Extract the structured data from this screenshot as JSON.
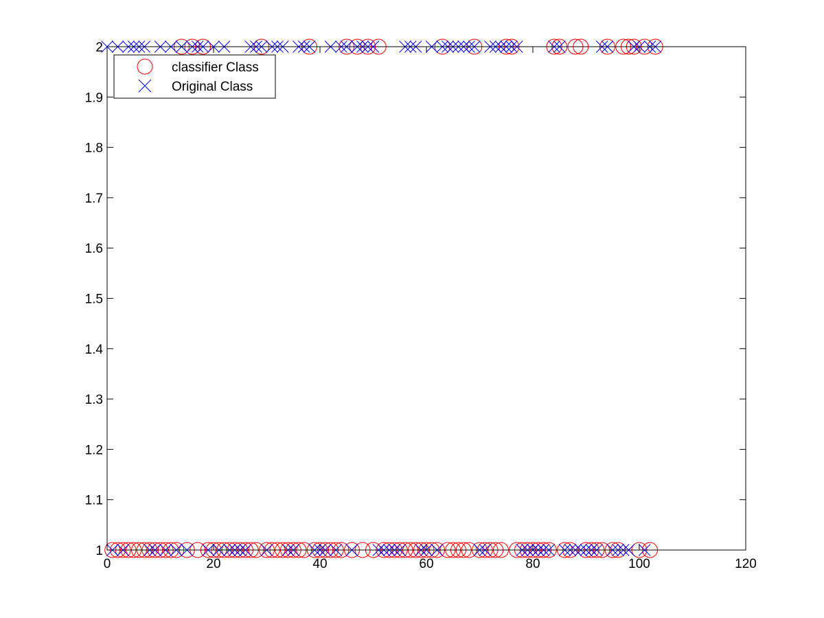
{
  "chart_data": {
    "type": "scatter",
    "title": "",
    "xlabel": "",
    "ylabel": "",
    "xlim": [
      0,
      120
    ],
    "ylim": [
      1,
      2
    ],
    "xticks": [
      "0",
      "20",
      "40",
      "60",
      "80",
      "100",
      "120"
    ],
    "yticks": [
      "1",
      "1.1",
      "1.2",
      "1.3",
      "1.4",
      "1.5",
      "1.6",
      "1.7",
      "1.8",
      "1.9",
      "2"
    ],
    "grid": false,
    "legend_position": "top-left",
    "series": [
      {
        "name": "classifier Class",
        "marker": "circle",
        "color": "#ff0000",
        "points": [
          {
            "x": 1,
            "y": 1
          },
          {
            "x": 2,
            "y": 1
          },
          {
            "x": 3,
            "y": 1
          },
          {
            "x": 4,
            "y": 1
          },
          {
            "x": 5,
            "y": 1
          },
          {
            "x": 6,
            "y": 1
          },
          {
            "x": 7,
            "y": 1
          },
          {
            "x": 8,
            "y": 1
          },
          {
            "x": 9,
            "y": 1
          },
          {
            "x": 10,
            "y": 1
          },
          {
            "x": 11,
            "y": 1
          },
          {
            "x": 12,
            "y": 1
          },
          {
            "x": 13,
            "y": 1
          },
          {
            "x": 14,
            "y": 2
          },
          {
            "x": 15,
            "y": 1
          },
          {
            "x": 16,
            "y": 2
          },
          {
            "x": 17,
            "y": 1
          },
          {
            "x": 18,
            "y": 2
          },
          {
            "x": 19,
            "y": 1
          },
          {
            "x": 20,
            "y": 1
          },
          {
            "x": 21,
            "y": 1
          },
          {
            "x": 22,
            "y": 1
          },
          {
            "x": 23,
            "y": 1
          },
          {
            "x": 24,
            "y": 1
          },
          {
            "x": 25,
            "y": 1
          },
          {
            "x": 26,
            "y": 1
          },
          {
            "x": 27,
            "y": 1
          },
          {
            "x": 28,
            "y": 1
          },
          {
            "x": 29,
            "y": 2
          },
          {
            "x": 30,
            "y": 1
          },
          {
            "x": 31,
            "y": 1
          },
          {
            "x": 32,
            "y": 1
          },
          {
            "x": 33,
            "y": 1
          },
          {
            "x": 34,
            "y": 1
          },
          {
            "x": 35,
            "y": 1
          },
          {
            "x": 36,
            "y": 1
          },
          {
            "x": 37,
            "y": 1
          },
          {
            "x": 38,
            "y": 2
          },
          {
            "x": 39,
            "y": 1
          },
          {
            "x": 40,
            "y": 1
          },
          {
            "x": 41,
            "y": 1
          },
          {
            "x": 42,
            "y": 1
          },
          {
            "x": 43,
            "y": 1
          },
          {
            "x": 44,
            "y": 1
          },
          {
            "x": 45,
            "y": 2
          },
          {
            "x": 46,
            "y": 1
          },
          {
            "x": 47,
            "y": 2
          },
          {
            "x": 48,
            "y": 1
          },
          {
            "x": 49,
            "y": 2
          },
          {
            "x": 50,
            "y": 1
          },
          {
            "x": 51,
            "y": 2
          },
          {
            "x": 52,
            "y": 1
          },
          {
            "x": 53,
            "y": 1
          },
          {
            "x": 54,
            "y": 1
          },
          {
            "x": 55,
            "y": 1
          },
          {
            "x": 56,
            "y": 1
          },
          {
            "x": 57,
            "y": 1
          },
          {
            "x": 58,
            "y": 1
          },
          {
            "x": 59,
            "y": 1
          },
          {
            "x": 60,
            "y": 1
          },
          {
            "x": 61,
            "y": 1
          },
          {
            "x": 62,
            "y": 1
          },
          {
            "x": 63,
            "y": 2
          },
          {
            "x": 64,
            "y": 1
          },
          {
            "x": 65,
            "y": 1
          },
          {
            "x": 66,
            "y": 1
          },
          {
            "x": 67,
            "y": 1
          },
          {
            "x": 68,
            "y": 1
          },
          {
            "x": 69,
            "y": 2
          },
          {
            "x": 70,
            "y": 1
          },
          {
            "x": 71,
            "y": 1
          },
          {
            "x": 72,
            "y": 1
          },
          {
            "x": 73,
            "y": 1
          },
          {
            "x": 74,
            "y": 1
          },
          {
            "x": 75,
            "y": 2
          },
          {
            "x": 76,
            "y": 2
          },
          {
            "x": 77,
            "y": 1
          },
          {
            "x": 78,
            "y": 1
          },
          {
            "x": 79,
            "y": 1
          },
          {
            "x": 80,
            "y": 1
          },
          {
            "x": 81,
            "y": 1
          },
          {
            "x": 82,
            "y": 1
          },
          {
            "x": 83,
            "y": 1
          },
          {
            "x": 84,
            "y": 2
          },
          {
            "x": 85,
            "y": 2
          },
          {
            "x": 86,
            "y": 1
          },
          {
            "x": 87,
            "y": 1
          },
          {
            "x": 88,
            "y": 2
          },
          {
            "x": 89,
            "y": 2
          },
          {
            "x": 90,
            "y": 1
          },
          {
            "x": 91,
            "y": 1
          },
          {
            "x": 92,
            "y": 1
          },
          {
            "x": 93,
            "y": 1
          },
          {
            "x": 94,
            "y": 2
          },
          {
            "x": 95,
            "y": 1
          },
          {
            "x": 96,
            "y": 1
          },
          {
            "x": 97,
            "y": 2
          },
          {
            "x": 98,
            "y": 2
          },
          {
            "x": 99,
            "y": 2
          },
          {
            "x": 100,
            "y": 1
          },
          {
            "x": 101,
            "y": 2
          },
          {
            "x": 102,
            "y": 1
          },
          {
            "x": 103,
            "y": 2
          }
        ]
      },
      {
        "name": "Original Class",
        "marker": "x",
        "color": "#0000ff",
        "points": [
          {
            "x": 0,
            "y": 2
          },
          {
            "x": 1,
            "y": 1
          },
          {
            "x": 2,
            "y": 2
          },
          {
            "x": 3,
            "y": 1
          },
          {
            "x": 4,
            "y": 2
          },
          {
            "x": 5,
            "y": 2
          },
          {
            "x": 6,
            "y": 2
          },
          {
            "x": 7,
            "y": 2
          },
          {
            "x": 8,
            "y": 1
          },
          {
            "x": 9,
            "y": 1
          },
          {
            "x": 10,
            "y": 2
          },
          {
            "x": 11,
            "y": 1
          },
          {
            "x": 12,
            "y": 2
          },
          {
            "x": 13,
            "y": 1
          },
          {
            "x": 14,
            "y": 2
          },
          {
            "x": 15,
            "y": 1
          },
          {
            "x": 16,
            "y": 2
          },
          {
            "x": 17,
            "y": 2
          },
          {
            "x": 18,
            "y": 2
          },
          {
            "x": 19,
            "y": 1
          },
          {
            "x": 20,
            "y": 2
          },
          {
            "x": 21,
            "y": 1
          },
          {
            "x": 22,
            "y": 2
          },
          {
            "x": 23,
            "y": 1
          },
          {
            "x": 24,
            "y": 1
          },
          {
            "x": 25,
            "y": 1
          },
          {
            "x": 26,
            "y": 1
          },
          {
            "x": 27,
            "y": 2
          },
          {
            "x": 28,
            "y": 2
          },
          {
            "x": 29,
            "y": 2
          },
          {
            "x": 30,
            "y": 1
          },
          {
            "x": 31,
            "y": 2
          },
          {
            "x": 32,
            "y": 2
          },
          {
            "x": 33,
            "y": 2
          },
          {
            "x": 34,
            "y": 1
          },
          {
            "x": 35,
            "y": 1
          },
          {
            "x": 36,
            "y": 2
          },
          {
            "x": 37,
            "y": 2
          },
          {
            "x": 38,
            "y": 2
          },
          {
            "x": 39,
            "y": 1
          },
          {
            "x": 40,
            "y": 1
          },
          {
            "x": 41,
            "y": 1
          },
          {
            "x": 42,
            "y": 2
          },
          {
            "x": 43,
            "y": 1
          },
          {
            "x": 44,
            "y": 2
          },
          {
            "x": 45,
            "y": 2
          },
          {
            "x": 46,
            "y": 1
          },
          {
            "x": 47,
            "y": 2
          },
          {
            "x": 48,
            "y": 2
          },
          {
            "x": 49,
            "y": 2
          },
          {
            "x": 50,
            "y": 2
          },
          {
            "x": 51,
            "y": 1
          },
          {
            "x": 52,
            "y": 1
          },
          {
            "x": 53,
            "y": 1
          },
          {
            "x": 54,
            "y": 1
          },
          {
            "x": 55,
            "y": 1
          },
          {
            "x": 56,
            "y": 2
          },
          {
            "x": 57,
            "y": 2
          },
          {
            "x": 58,
            "y": 2
          },
          {
            "x": 59,
            "y": 1
          },
          {
            "x": 60,
            "y": 1
          },
          {
            "x": 61,
            "y": 2
          },
          {
            "x": 62,
            "y": 1
          },
          {
            "x": 63,
            "y": 2
          },
          {
            "x": 64,
            "y": 2
          },
          {
            "x": 65,
            "y": 2
          },
          {
            "x": 66,
            "y": 2
          },
          {
            "x": 67,
            "y": 2
          },
          {
            "x": 68,
            "y": 2
          },
          {
            "x": 69,
            "y": 2
          },
          {
            "x": 70,
            "y": 1
          },
          {
            "x": 71,
            "y": 1
          },
          {
            "x": 72,
            "y": 2
          },
          {
            "x": 73,
            "y": 2
          },
          {
            "x": 74,
            "y": 2
          },
          {
            "x": 75,
            "y": 2
          },
          {
            "x": 76,
            "y": 2
          },
          {
            "x": 77,
            "y": 2
          },
          {
            "x": 78,
            "y": 1
          },
          {
            "x": 79,
            "y": 1
          },
          {
            "x": 80,
            "y": 1
          },
          {
            "x": 81,
            "y": 1
          },
          {
            "x": 82,
            "y": 1
          },
          {
            "x": 83,
            "y": 1
          },
          {
            "x": 84,
            "y": 2
          },
          {
            "x": 85,
            "y": 2
          },
          {
            "x": 86,
            "y": 1
          },
          {
            "x": 87,
            "y": 1
          },
          {
            "x": 88,
            "y": 1
          },
          {
            "x": 89,
            "y": 1
          },
          {
            "x": 90,
            "y": 1
          },
          {
            "x": 91,
            "y": 1
          },
          {
            "x": 92,
            "y": 1
          },
          {
            "x": 93,
            "y": 2
          },
          {
            "x": 94,
            "y": 2
          },
          {
            "x": 95,
            "y": 1
          },
          {
            "x": 96,
            "y": 1
          },
          {
            "x": 97,
            "y": 1
          },
          {
            "x": 98,
            "y": 1
          },
          {
            "x": 99,
            "y": 2
          },
          {
            "x": 100,
            "y": 2
          },
          {
            "x": 101,
            "y": 1
          },
          {
            "x": 102,
            "y": 2
          },
          {
            "x": 103,
            "y": 2
          }
        ]
      }
    ]
  }
}
